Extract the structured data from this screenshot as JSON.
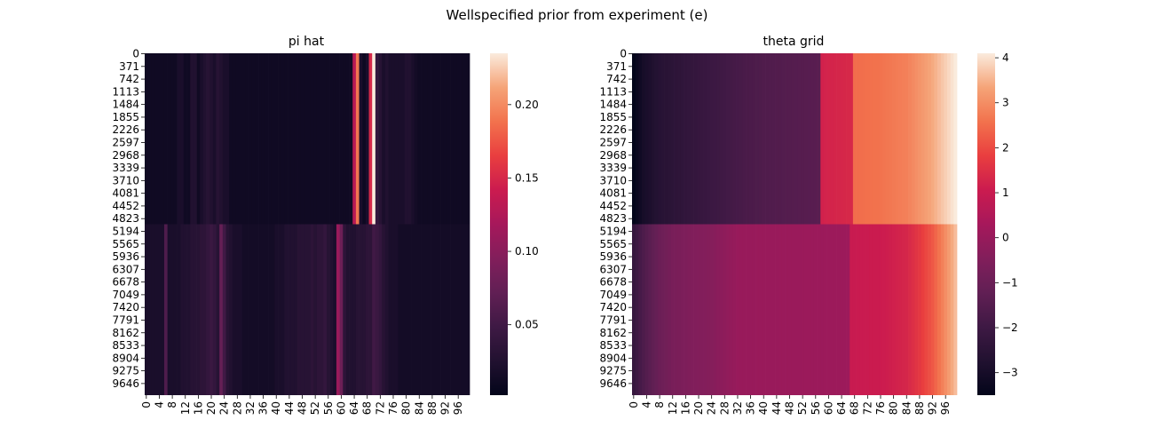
{
  "suptitle": "Wellspecified prior from experiment (e)",
  "chart_data": [
    {
      "type": "heatmap",
      "title": "pi hat",
      "colormap": "rocket",
      "ytick_labels": [
        "0",
        "371",
        "742",
        "1113",
        "1484",
        "1855",
        "2226",
        "2597",
        "2968",
        "3339",
        "3710",
        "4081",
        "4452",
        "4823",
        "5194",
        "5565",
        "5936",
        "6307",
        "6678",
        "7049",
        "7420",
        "7791",
        "8162",
        "8533",
        "8904",
        "9275",
        "9646"
      ],
      "xtick_labels": [
        "0",
        "4",
        "8",
        "12",
        "16",
        "20",
        "24",
        "28",
        "32",
        "36",
        "40",
        "44",
        "48",
        "52",
        "56",
        "60",
        "64",
        "68",
        "72",
        "76",
        "80",
        "84",
        "88",
        "92",
        "96"
      ],
      "n_rows": 10000,
      "n_cols": 100,
      "row_split": 5000,
      "colorbar": {
        "vmin": 0.002,
        "vmax": 0.235,
        "tick_values": [
          0.05,
          0.1,
          0.15,
          0.2
        ],
        "tick_labels": [
          "0.05",
          "0.10",
          "0.15",
          "0.20"
        ]
      },
      "bands": [
        {
          "rows": [
            0,
            5000
          ],
          "base": 0.012,
          "column_values": [
            {
              "col": 10,
              "value": 0.02
            },
            {
              "col": 11,
              "value": 0.02
            },
            {
              "col": 14,
              "value": 0.025
            },
            {
              "col": 15,
              "value": 0.025
            },
            {
              "col": 17,
              "value": 0.02
            },
            {
              "col": 18,
              "value": 0.025
            },
            {
              "col": 19,
              "value": 0.03
            },
            {
              "col": 20,
              "value": 0.025
            },
            {
              "col": 21,
              "value": 0.02
            },
            {
              "col": 22,
              "value": 0.03
            },
            {
              "col": 23,
              "value": 0.025
            },
            {
              "col": 24,
              "value": 0.02
            },
            {
              "col": 25,
              "value": 0.02
            },
            {
              "col": 64,
              "value": 0.13
            },
            {
              "col": 65,
              "value": 0.19
            },
            {
              "col": 66,
              "value": 0.02
            },
            {
              "col": 67,
              "value": 0.01
            },
            {
              "col": 68,
              "value": 0.02
            },
            {
              "col": 69,
              "value": 0.15
            },
            {
              "col": 70,
              "value": 0.235
            },
            {
              "col": 71,
              "value": 0.04
            },
            {
              "col": 72,
              "value": 0.03
            },
            {
              "col": 73,
              "value": 0.02
            },
            {
              "col": 74,
              "value": 0.025
            },
            {
              "col": 75,
              "value": 0.02
            },
            {
              "col": 76,
              "value": 0.02
            },
            {
              "col": 77,
              "value": 0.02
            },
            {
              "col": 78,
              "value": 0.02
            },
            {
              "col": 79,
              "value": 0.02
            },
            {
              "col": 80,
              "value": 0.025
            },
            {
              "col": 81,
              "value": 0.025
            },
            {
              "col": 82,
              "value": 0.02
            },
            {
              "col": 83,
              "value": 0.015
            }
          ]
        },
        {
          "rows": [
            5000,
            10000
          ],
          "base": 0.015,
          "column_values": [
            {
              "col": 0,
              "value": 0.02
            },
            {
              "col": 1,
              "value": 0.02
            },
            {
              "col": 2,
              "value": 0.02
            },
            {
              "col": 3,
              "value": 0.02
            },
            {
              "col": 4,
              "value": 0.02
            },
            {
              "col": 5,
              "value": 0.02
            },
            {
              "col": 6,
              "value": 0.06
            },
            {
              "col": 7,
              "value": 0.02
            },
            {
              "col": 8,
              "value": 0.02
            },
            {
              "col": 9,
              "value": 0.02
            },
            {
              "col": 10,
              "value": 0.02
            },
            {
              "col": 11,
              "value": 0.025
            },
            {
              "col": 12,
              "value": 0.025
            },
            {
              "col": 13,
              "value": 0.025
            },
            {
              "col": 14,
              "value": 0.03
            },
            {
              "col": 15,
              "value": 0.03
            },
            {
              "col": 16,
              "value": 0.03
            },
            {
              "col": 17,
              "value": 0.035
            },
            {
              "col": 18,
              "value": 0.035
            },
            {
              "col": 19,
              "value": 0.04
            },
            {
              "col": 20,
              "value": 0.045
            },
            {
              "col": 21,
              "value": 0.04
            },
            {
              "col": 22,
              "value": 0.03
            },
            {
              "col": 23,
              "value": 0.075
            },
            {
              "col": 24,
              "value": 0.05
            },
            {
              "col": 25,
              "value": 0.03
            },
            {
              "col": 26,
              "value": 0.025
            },
            {
              "col": 27,
              "value": 0.02
            },
            {
              "col": 28,
              "value": 0.02
            },
            {
              "col": 29,
              "value": 0.02
            },
            {
              "col": 30,
              "value": 0.015
            },
            {
              "col": 31,
              "value": 0.015
            },
            {
              "col": 32,
              "value": 0.015
            },
            {
              "col": 33,
              "value": 0.015
            },
            {
              "col": 34,
              "value": 0.015
            },
            {
              "col": 35,
              "value": 0.015
            },
            {
              "col": 36,
              "value": 0.015
            },
            {
              "col": 37,
              "value": 0.015
            },
            {
              "col": 38,
              "value": 0.015
            },
            {
              "col": 39,
              "value": 0.015
            },
            {
              "col": 40,
              "value": 0.02
            },
            {
              "col": 41,
              "value": 0.02
            },
            {
              "col": 42,
              "value": 0.02
            },
            {
              "col": 43,
              "value": 0.025
            },
            {
              "col": 44,
              "value": 0.025
            },
            {
              "col": 45,
              "value": 0.025
            },
            {
              "col": 46,
              "value": 0.025
            },
            {
              "col": 47,
              "value": 0.03
            },
            {
              "col": 48,
              "value": 0.03
            },
            {
              "col": 49,
              "value": 0.03
            },
            {
              "col": 50,
              "value": 0.03
            },
            {
              "col": 51,
              "value": 0.035
            },
            {
              "col": 52,
              "value": 0.03
            },
            {
              "col": 53,
              "value": 0.035
            },
            {
              "col": 54,
              "value": 0.035
            },
            {
              "col": 55,
              "value": 0.04
            },
            {
              "col": 56,
              "value": 0.03
            },
            {
              "col": 57,
              "value": 0.025
            },
            {
              "col": 58,
              "value": 0.02
            },
            {
              "col": 59,
              "value": 0.11
            },
            {
              "col": 60,
              "value": 0.08
            },
            {
              "col": 61,
              "value": 0.035
            },
            {
              "col": 62,
              "value": 0.025
            },
            {
              "col": 63,
              "value": 0.025
            },
            {
              "col": 64,
              "value": 0.025
            },
            {
              "col": 65,
              "value": 0.03
            },
            {
              "col": 66,
              "value": 0.03
            },
            {
              "col": 67,
              "value": 0.03
            },
            {
              "col": 68,
              "value": 0.035
            },
            {
              "col": 69,
              "value": 0.035
            },
            {
              "col": 70,
              "value": 0.05
            },
            {
              "col": 71,
              "value": 0.045
            },
            {
              "col": 72,
              "value": 0.04
            },
            {
              "col": 73,
              "value": 0.03
            },
            {
              "col": 74,
              "value": 0.025
            },
            {
              "col": 75,
              "value": 0.02
            },
            {
              "col": 76,
              "value": 0.02
            },
            {
              "col": 77,
              "value": 0.02
            }
          ]
        }
      ]
    },
    {
      "type": "heatmap",
      "title": "theta grid",
      "colormap": "rocket",
      "ytick_labels": [
        "0",
        "371",
        "742",
        "1113",
        "1484",
        "1855",
        "2226",
        "2597",
        "2968",
        "3339",
        "3710",
        "4081",
        "4452",
        "4823",
        "5194",
        "5565",
        "5936",
        "6307",
        "6678",
        "7049",
        "7420",
        "7791",
        "8162",
        "8533",
        "8904",
        "9275",
        "9646"
      ],
      "xtick_labels": [
        "0",
        "4",
        "8",
        "12",
        "16",
        "20",
        "24",
        "28",
        "32",
        "36",
        "40",
        "44",
        "48",
        "52",
        "56",
        "60",
        "64",
        "68",
        "72",
        "76",
        "80",
        "84",
        "88",
        "92",
        "96"
      ],
      "n_rows": 10000,
      "n_cols": 100,
      "row_split": 5000,
      "colorbar": {
        "vmin": -3.5,
        "vmax": 4.1,
        "tick_values": [
          -3,
          -2,
          -1,
          0,
          1,
          2,
          3,
          4
        ],
        "tick_labels": [
          "−3",
          "−2",
          "−1",
          "0",
          "1",
          "2",
          "3",
          "4"
        ]
      },
      "bands": [
        {
          "rows": [
            0,
            5000
          ],
          "column_profile": [
            {
              "col": 0,
              "value": -3.5
            },
            {
              "col": 3,
              "value": -3.0
            },
            {
              "col": 8,
              "value": -2.6
            },
            {
              "col": 14,
              "value": -2.4
            },
            {
              "col": 20,
              "value": -2.2
            },
            {
              "col": 26,
              "value": -2.0
            },
            {
              "col": 32,
              "value": -1.8
            },
            {
              "col": 40,
              "value": -1.6
            },
            {
              "col": 48,
              "value": -1.5
            },
            {
              "col": 57,
              "value": -1.4
            },
            {
              "col": 58,
              "value": 1.2
            },
            {
              "col": 60,
              "value": 1.25
            },
            {
              "col": 67,
              "value": 1.35
            },
            {
              "col": 68,
              "value": 2.5
            },
            {
              "col": 76,
              "value": 2.6
            },
            {
              "col": 84,
              "value": 2.8
            },
            {
              "col": 88,
              "value": 3.1
            },
            {
              "col": 92,
              "value": 3.4
            },
            {
              "col": 96,
              "value": 3.8
            },
            {
              "col": 99,
              "value": 4.1
            }
          ]
        },
        {
          "rows": [
            5000,
            10000
          ],
          "column_profile": [
            {
              "col": 0,
              "value": -2.2
            },
            {
              "col": 2,
              "value": -1.8
            },
            {
              "col": 4,
              "value": -1.5
            },
            {
              "col": 8,
              "value": -1.0
            },
            {
              "col": 12,
              "value": -0.7
            },
            {
              "col": 18,
              "value": -0.5
            },
            {
              "col": 24,
              "value": -0.4
            },
            {
              "col": 28,
              "value": -0.2
            },
            {
              "col": 32,
              "value": 0.0
            },
            {
              "col": 66,
              "value": 0.1
            },
            {
              "col": 67,
              "value": 1.0
            },
            {
              "col": 76,
              "value": 1.05
            },
            {
              "col": 84,
              "value": 1.3
            },
            {
              "col": 88,
              "value": 1.7
            },
            {
              "col": 92,
              "value": 2.2
            },
            {
              "col": 95,
              "value": 2.8
            },
            {
              "col": 99,
              "value": 3.6
            }
          ]
        }
      ]
    }
  ]
}
